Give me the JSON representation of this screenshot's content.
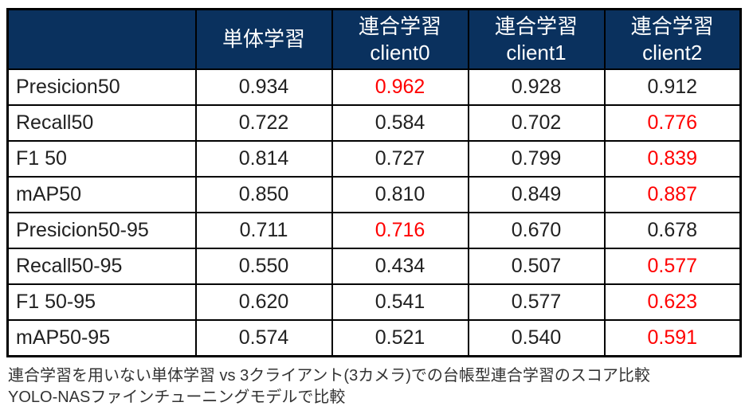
{
  "chart_data": {
    "type": "table",
    "column_headers": [
      {
        "line1": "",
        "line2": ""
      },
      {
        "line1": "単体学習",
        "line2": ""
      },
      {
        "line1": "連合学習",
        "line2": "client0"
      },
      {
        "line1": "連合学習",
        "line2": "client1"
      },
      {
        "line1": "連合学習",
        "line2": "client2"
      }
    ],
    "rows": [
      {
        "metric": "Presicion50",
        "values": [
          "0.934",
          "0.962",
          "0.928",
          "0.912"
        ],
        "red_index": 1
      },
      {
        "metric": "Recall50",
        "values": [
          "0.722",
          "0.584",
          "0.702",
          "0.776"
        ],
        "red_index": 3
      },
      {
        "metric": "F1 50",
        "values": [
          "0.814",
          "0.727",
          "0.799",
          "0.839"
        ],
        "red_index": 3
      },
      {
        "metric": "mAP50",
        "values": [
          "0.850",
          "0.810",
          "0.849",
          "0.887"
        ],
        "red_index": 3
      },
      {
        "metric": "Presicion50-95",
        "values": [
          "0.711",
          "0.716",
          "0.670",
          "0.678"
        ],
        "red_index": 1
      },
      {
        "metric": "Recall50-95",
        "values": [
          "0.550",
          "0.434",
          "0.507",
          "0.577"
        ],
        "red_index": 3
      },
      {
        "metric": "F1 50-95",
        "values": [
          "0.620",
          "0.541",
          "0.577",
          "0.623"
        ],
        "red_index": 3
      },
      {
        "metric": "mAP50-95",
        "values": [
          "0.574",
          "0.521",
          "0.540",
          "0.591"
        ],
        "red_index": 3
      }
    ],
    "legend_position": "none",
    "grid": true
  },
  "caption": {
    "line1": "連合学習を用いない単体学習 vs 3クライアント(3カメラ)での台帳型連合学習のスコア比較",
    "line2": "YOLO-NASファインチューニングモデルで比較"
  },
  "colors": {
    "header_bg": "#0a315e",
    "header_text": "#ffffff",
    "highlight": "#ff0000",
    "text": "#212121",
    "border": "#000000"
  }
}
